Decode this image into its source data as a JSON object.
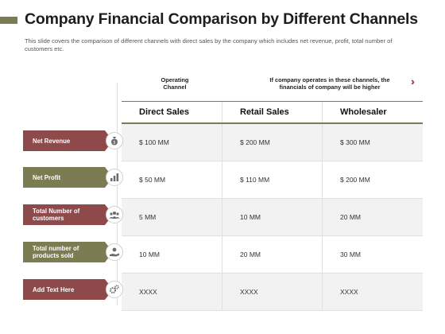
{
  "header": {
    "title": "Company Financial Comparison by Different Channels",
    "subtitle": "This slide covers the comparison of different channels with direct sales by the company which includes net revenue,  profit, total number of customers etc."
  },
  "top_labels": {
    "operating_channel": "Operating Channel",
    "note": "If company operates in these channels, the financials of company will be higher"
  },
  "columns": [
    "Direct Sales",
    "Retail Sales",
    "Wholesaler"
  ],
  "rows": [
    {
      "label": "Net Revenue",
      "color": "#8e4a4b",
      "icon": "money-bag-icon",
      "values": [
        "$ 100 MM",
        "$ 200 MM",
        "$ 300 MM"
      ]
    },
    {
      "label": "Net Profit",
      "color": "#7b7c52",
      "icon": "bar-chart-icon",
      "values": [
        "$ 50 MM",
        "$ 110 MM",
        "$ 200 MM"
      ]
    },
    {
      "label": "Total Number of customers",
      "color": "#8e4a4b",
      "icon": "people-group-icon",
      "values": [
        "5 MM",
        "10 MM",
        "20 MM"
      ]
    },
    {
      "label": "Total number of products sold",
      "color": "#7b7c52",
      "icon": "hand-coin-icon",
      "values": [
        "10 MM",
        "20 MM",
        "30 MM"
      ]
    },
    {
      "label": "Add  Text Here",
      "color": "#8e4a4b",
      "icon": "gears-icon",
      "values": [
        "XXXX",
        "XXXX",
        "XXXX"
      ]
    }
  ]
}
